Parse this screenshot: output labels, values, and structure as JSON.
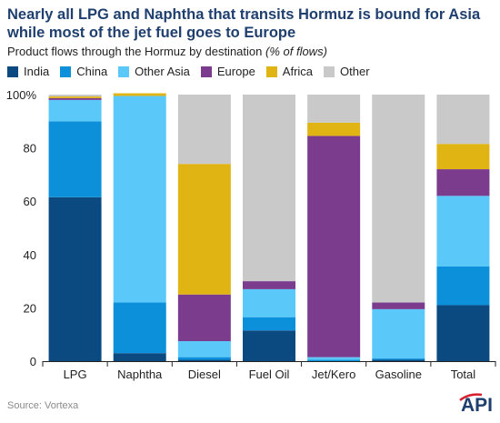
{
  "title": "Nearly all LPG and Naphtha that transits Hormuz is bound for Asia while most of the jet fuel goes to Europe",
  "subtitle": "Product flows through the Hormuz by destination",
  "subtitle_unit": "(% of flows)",
  "source": "Source: Vortexa",
  "logo_text": "API",
  "colors": {
    "India": "#0b4a80",
    "China": "#0b90d9",
    "Other Asia": "#5bc8fa",
    "Europe": "#7b3c8e",
    "Africa": "#e0b412",
    "Other": "#c9c9c9",
    "logo": "#1f3f6e",
    "logo_accent": "#d6202f"
  },
  "chart_data": {
    "type": "bar",
    "stacked": true,
    "categories": [
      "LPG",
      "Naphtha",
      "Diesel",
      "Fuel Oil",
      "Jet/Kero",
      "Gasoline",
      "Total"
    ],
    "ylim": [
      0,
      100
    ],
    "yticks": [
      "0",
      "20",
      "40",
      "60",
      "80",
      "100%"
    ],
    "ytick_values": [
      0,
      20,
      40,
      60,
      80,
      100
    ],
    "legend_position": "top-left",
    "grid": false,
    "series": [
      {
        "name": "India",
        "values": [
          61.5,
          3,
          0.5,
          11.5,
          0,
          0.5,
          21
        ]
      },
      {
        "name": "China",
        "values": [
          28.5,
          19,
          1,
          5,
          0.5,
          0.5,
          14.5
        ]
      },
      {
        "name": "Other Asia",
        "values": [
          8,
          77.5,
          6,
          10.5,
          1,
          18.5,
          26.5
        ]
      },
      {
        "name": "Europe",
        "values": [
          0.7,
          0,
          17.5,
          3,
          83,
          2.5,
          10
        ]
      },
      {
        "name": "Africa",
        "values": [
          0.6,
          1,
          49,
          0,
          5,
          0,
          9.5
        ]
      },
      {
        "name": "Other",
        "values": [
          0.7,
          0,
          26,
          70,
          10.5,
          78,
          18.5
        ]
      }
    ]
  }
}
